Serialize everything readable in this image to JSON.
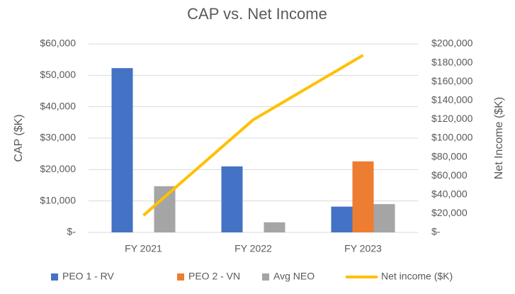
{
  "chart_data": {
    "type": "bar",
    "title": "CAP vs. Net Income",
    "y_label": "CAP ($K)",
    "y2_label": "Net Income ($K)",
    "categories": [
      "FY 2021",
      "FY 2022",
      "FY 2023"
    ],
    "series": [
      {
        "name": "PEO 1 - RV",
        "color": "#4472c4",
        "values": [
          52300,
          21000,
          8200
        ]
      },
      {
        "name": "PEO 2 - VN",
        "color": "#ed7d31",
        "values": [
          null,
          null,
          22600
        ]
      },
      {
        "name": "Avg NEO",
        "color": "#a5a5a5",
        "values": [
          14700,
          3200,
          9000
        ]
      },
      {
        "name": "Net income ($K)",
        "color": "#ffc000",
        "type": "line",
        "axis": "y2",
        "values": [
          18000,
          119500,
          188000
        ]
      }
    ],
    "ylim": [
      0,
      60000
    ],
    "yticks": [
      {
        "value": 0,
        "label": "$-"
      },
      {
        "value": 10000,
        "label": "$10,000"
      },
      {
        "value": 20000,
        "label": "$20,000"
      },
      {
        "value": 30000,
        "label": "$30,000"
      },
      {
        "value": 40000,
        "label": "$40,000"
      },
      {
        "value": 50000,
        "label": "$50,000"
      },
      {
        "value": 60000,
        "label": "$60,000"
      }
    ],
    "y2lim": [
      0,
      200000
    ],
    "y2ticks": [
      {
        "value": 0,
        "label": "$-"
      },
      {
        "value": 20000,
        "label": "$20,000"
      },
      {
        "value": 40000,
        "label": "$40,000"
      },
      {
        "value": 60000,
        "label": "$60,000"
      },
      {
        "value": 80000,
        "label": "$80,000"
      },
      {
        "value": 100000,
        "label": "$100,000"
      },
      {
        "value": 120000,
        "label": "$120,000"
      },
      {
        "value": 140000,
        "label": "$140,000"
      },
      {
        "value": 160000,
        "label": "$160,000"
      },
      {
        "value": 180000,
        "label": "$180,000"
      },
      {
        "value": 200000,
        "label": "$200,000"
      }
    ],
    "grid": true,
    "legend": "bottom"
  }
}
